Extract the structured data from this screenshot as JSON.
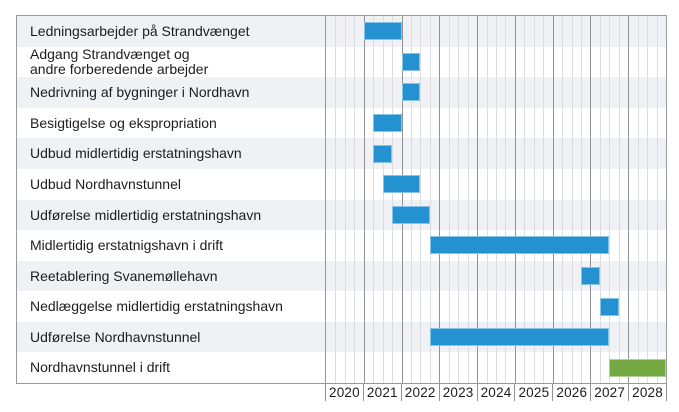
{
  "chart_data": {
    "type": "gantt",
    "title": "",
    "x_axis": {
      "tick_labels": [
        "2020",
        "2021",
        "2022",
        "2023",
        "2024",
        "2025",
        "2026",
        "2027",
        "2028"
      ],
      "range_years": [
        2020,
        2029
      ],
      "minor_grid_interval_years": 0.25,
      "grid": "on",
      "tick_position": "bottom"
    },
    "tasks": [
      {
        "label": "Ledningsarbejder på Strandvænget",
        "start": 2021.0,
        "end": 2022.0,
        "color_key": "bar_blue"
      },
      {
        "label": "Adgang Strandvænget og\nandre forberedende arbejder",
        "start": 2022.0,
        "end": 2022.5,
        "color_key": "bar_blue"
      },
      {
        "label": "Nedrivning af bygninger i Nordhavn",
        "start": 2022.0,
        "end": 2022.5,
        "color_key": "bar_blue"
      },
      {
        "label": "Besigtigelse og ekspropriation",
        "start": 2021.25,
        "end": 2022.0,
        "color_key": "bar_blue"
      },
      {
        "label": "Udbud midlertidig erstatningshavn",
        "start": 2021.25,
        "end": 2021.75,
        "color_key": "bar_blue"
      },
      {
        "label": "Udbud Nordhavnstunnel",
        "start": 2021.5,
        "end": 2022.5,
        "color_key": "bar_blue"
      },
      {
        "label": "Udførelse midlertidig erstatningshavn",
        "start": 2021.75,
        "end": 2022.75,
        "color_key": "bar_blue"
      },
      {
        "label": "Midlertidig erstatnigshavn i drift",
        "start": 2022.75,
        "end": 2027.5,
        "color_key": "bar_blue"
      },
      {
        "label": "Reetablering Svanemøllehavn",
        "start": 2026.75,
        "end": 2027.25,
        "color_key": "bar_blue"
      },
      {
        "label": "Nedlæggelse midlertidig erstatningshavn",
        "start": 2027.25,
        "end": 2027.75,
        "color_key": "bar_blue"
      },
      {
        "label": "Udførelse Nordhavnstunnel",
        "start": 2022.75,
        "end": 2027.5,
        "color_key": "bar_blue"
      },
      {
        "label": "Nordhavnstunnel i drift",
        "start": 2027.5,
        "end": 2029.0,
        "color_key": "bar_green"
      }
    ],
    "colors": {
      "bar_blue": "#2492d1",
      "bar_green": "#74a843",
      "row_band": "#f0f1f5",
      "grid_major": "#919296",
      "grid_minor": "#dcdde0",
      "frame_border": "#98999c",
      "text": "#1d1d1f",
      "background": "#ffffff"
    },
    "legend": "none",
    "row_shading": "alternate-odd-rows-shaded"
  }
}
